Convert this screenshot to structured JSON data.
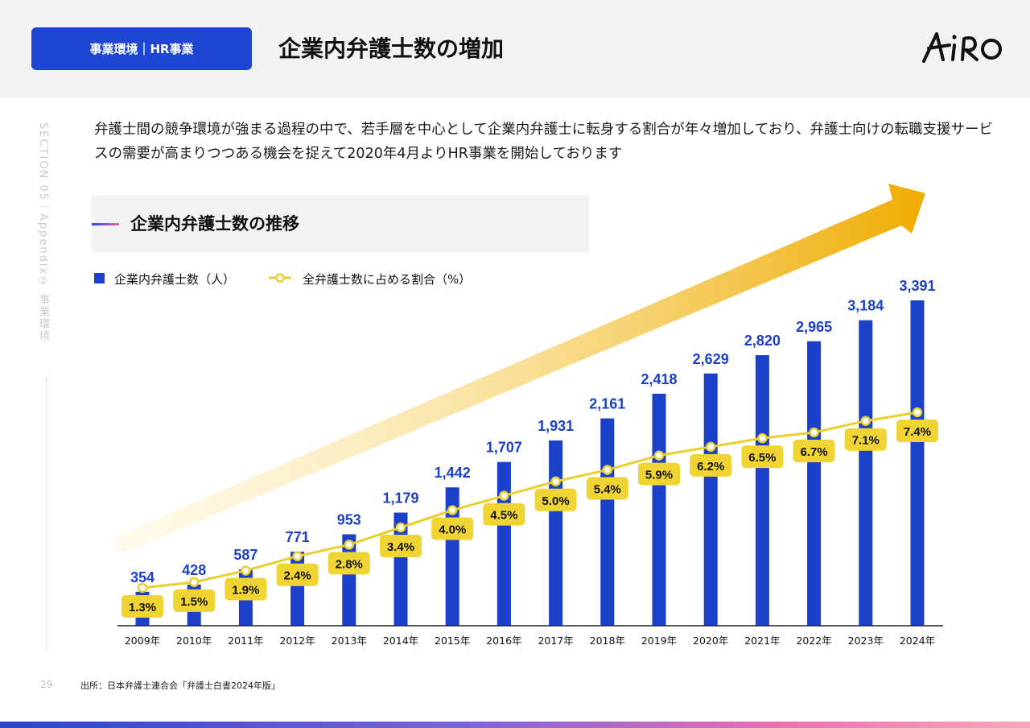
{
  "header": {
    "section_badge": "事業環境｜HR事業",
    "title": "企業内弁護士数の増加",
    "logo_text": "AiRO"
  },
  "side_label": "SECTION 05｜Appendix② 事業環境",
  "intro_text": "弁護士間の競争環境が強まる過程の中で、若手層を中心として企業内弁護士に転身する割合が年々増加しており、弁護士向けの転職支援サービスの需要が高まりつつある機会を捉えて2020年4月よりHR事業を開始しております",
  "subhead": "企業内弁護士数の推移",
  "colors": {
    "bar": "#1b40c9",
    "line": "#e9cf2c",
    "label_bg": "#f0d434",
    "arrow_start": "#fdf3c8",
    "arrow_end": "#efab00",
    "badge": "#1e46d2"
  },
  "chart_data": {
    "type": "bar",
    "categories": [
      "2009年",
      "2010年",
      "2011年",
      "2012年",
      "2013年",
      "2014年",
      "2015年",
      "2016年",
      "2017年",
      "2018年",
      "2019年",
      "2020年",
      "2021年",
      "2022年",
      "2023年",
      "2024年"
    ],
    "series": [
      {
        "name": "企業内弁護士数（人）",
        "type": "bar",
        "values": [
          354,
          428,
          587,
          771,
          953,
          1179,
          1442,
          1707,
          1931,
          2161,
          2418,
          2629,
          2820,
          2965,
          3184,
          3391
        ],
        "labels": [
          "354",
          "428",
          "587",
          "771",
          "953",
          "1,179",
          "1,442",
          "1,707",
          "1,931",
          "2,161",
          "2,418",
          "2,629",
          "2,820",
          "2,965",
          "3,184",
          "3,391"
        ]
      },
      {
        "name": "全弁護士数に占める割合（%）",
        "type": "line",
        "values": [
          1.3,
          1.5,
          1.9,
          2.4,
          2.8,
          3.4,
          4.0,
          4.5,
          5.0,
          5.4,
          5.9,
          6.2,
          6.5,
          6.7,
          7.1,
          7.4
        ],
        "labels": [
          "1.3%",
          "1.5%",
          "1.9%",
          "2.4%",
          "2.8%",
          "3.4%",
          "4.0%",
          "4.5%",
          "5.0%",
          "5.4%",
          "5.9%",
          "6.2%",
          "6.5%",
          "6.7%",
          "7.1%",
          "7.4%"
        ]
      }
    ],
    "ylim": [
      0,
      3391
    ],
    "legend_position": "top-left"
  },
  "footer": {
    "page_number": "29",
    "source": "出所：日本弁護士連合会「弁護士白書2024年版」"
  }
}
